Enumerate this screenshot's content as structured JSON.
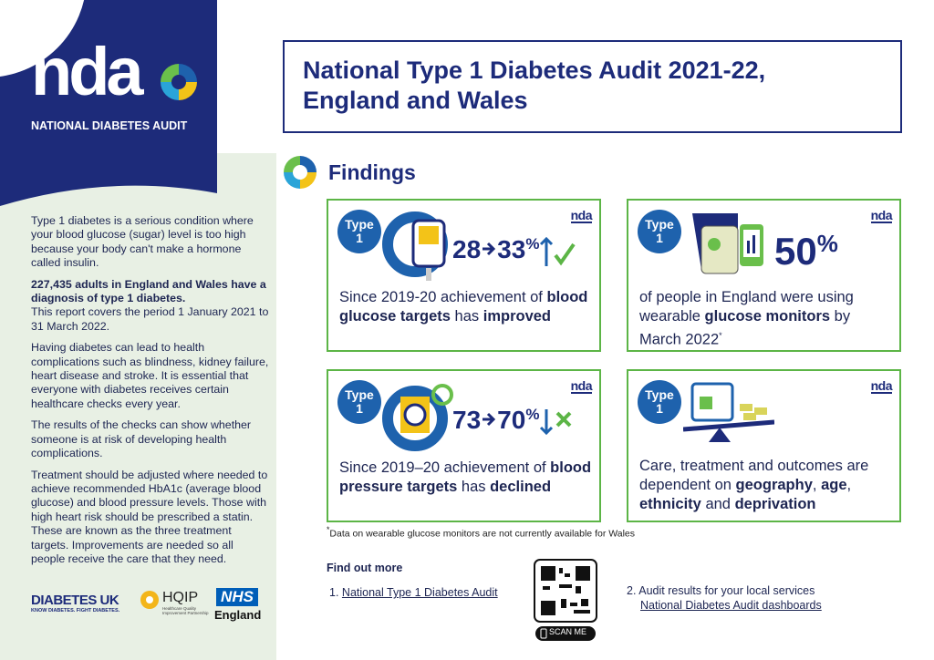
{
  "logo": {
    "wordmark": "nda",
    "name": "NATIONAL DIABETES AUDIT"
  },
  "sidebar": {
    "intro": "Type 1 diabetes is a serious condition where your blood glucose (sugar) level is too high because your body can't make a hormone called insulin.",
    "highlight": "227,435 adults in England and Wales have a diagnosis of type 1 diabetes.",
    "period": "This report covers the period 1 January 2021 to 31 March 2022.",
    "paragraphs": [
      "Having diabetes can lead to health complications such as blindness, kidney failure, heart disease and stroke. It is essential that everyone with diabetes receives certain healthcare checks every year.",
      "The results of the checks can show whether someone is at risk of developing health complications.",
      "Treatment should be adjusted where needed to achieve recommended HbA1c (average blood glucose) and blood pressure levels. Those with high heart risk should be prescribed a statin. These are known as the three treatment targets. Improvements are needed so all people receive the care that they need."
    ]
  },
  "partners": {
    "diabetes_uk": "DIABETES UK",
    "diabetes_uk_tagline": "KNOW DIABETES. FIGHT DIABETES.",
    "hqip": "HQIP",
    "hqip_tagline": "Healthcare Quality Improvement Partnership",
    "nhs": "NHS",
    "nhs_region": "England"
  },
  "header": {
    "title": "National Type 1 Diabetes Audit 2021-22, England and Wales"
  },
  "findings": {
    "title": "Findings",
    "cards": [
      {
        "badge": {
          "line1": "Type",
          "line2": 1
        },
        "stat": {
          "from": 28,
          "to": 33,
          "unit": "%"
        },
        "description": [
          {
            "text": "Since 2019-20 achievement of ",
            "bold": false
          },
          {
            "text": "blood glucose targets",
            "bold": true
          },
          {
            "text": " has ",
            "bold": false
          },
          {
            "text": "improved",
            "bold": true
          }
        ]
      },
      {
        "badge": {
          "line1": "Type",
          "line2": 1
        },
        "stat": {
          "value": 50,
          "unit": "%"
        },
        "description": [
          {
            "text": "of people in England were using wearable ",
            "bold": false
          },
          {
            "text": "glucose monitors",
            "bold": true
          },
          {
            "text": " by March 2022",
            "bold": false
          }
        ],
        "note": "*"
      },
      {
        "badge": {
          "line1": "Type",
          "line2": 1
        },
        "stat": {
          "from": 73,
          "to": 70,
          "unit": "%"
        },
        "description": [
          {
            "text": "Since 2019–20 achievement of ",
            "bold": false
          },
          {
            "text": "blood pressure targets",
            "bold": true
          },
          {
            "text": " has ",
            "bold": false
          },
          {
            "text": "declined",
            "bold": true
          }
        ]
      },
      {
        "badge": {
          "line1": "Type",
          "line2": 1
        },
        "description": [
          {
            "text": "Care, treatment and outcomes are dependent on ",
            "bold": false
          },
          {
            "text": "geography",
            "bold": true
          },
          {
            "text": ", ",
            "bold": false
          },
          {
            "text": "age",
            "bold": true
          },
          {
            "text": ", ",
            "bold": false
          },
          {
            "text": "ethnicity",
            "bold": true
          },
          {
            "text": " and ",
            "bold": false
          },
          {
            "text": "deprivation",
            "bold": true
          }
        ]
      }
    ]
  },
  "footnote": {
    "marker": "*",
    "text": "Data on wearable glucose monitors are not currently available for Wales"
  },
  "find_out_more": {
    "title": "Find out more",
    "items": [
      {
        "number": "1.",
        "link": "National Type 1 Diabetes Audit"
      },
      {
        "number": "2.",
        "text": "Audit results for your local services",
        "link": "National Diabetes Audit dashboards"
      }
    ],
    "qr": {
      "label": "SCAN ME"
    }
  }
}
